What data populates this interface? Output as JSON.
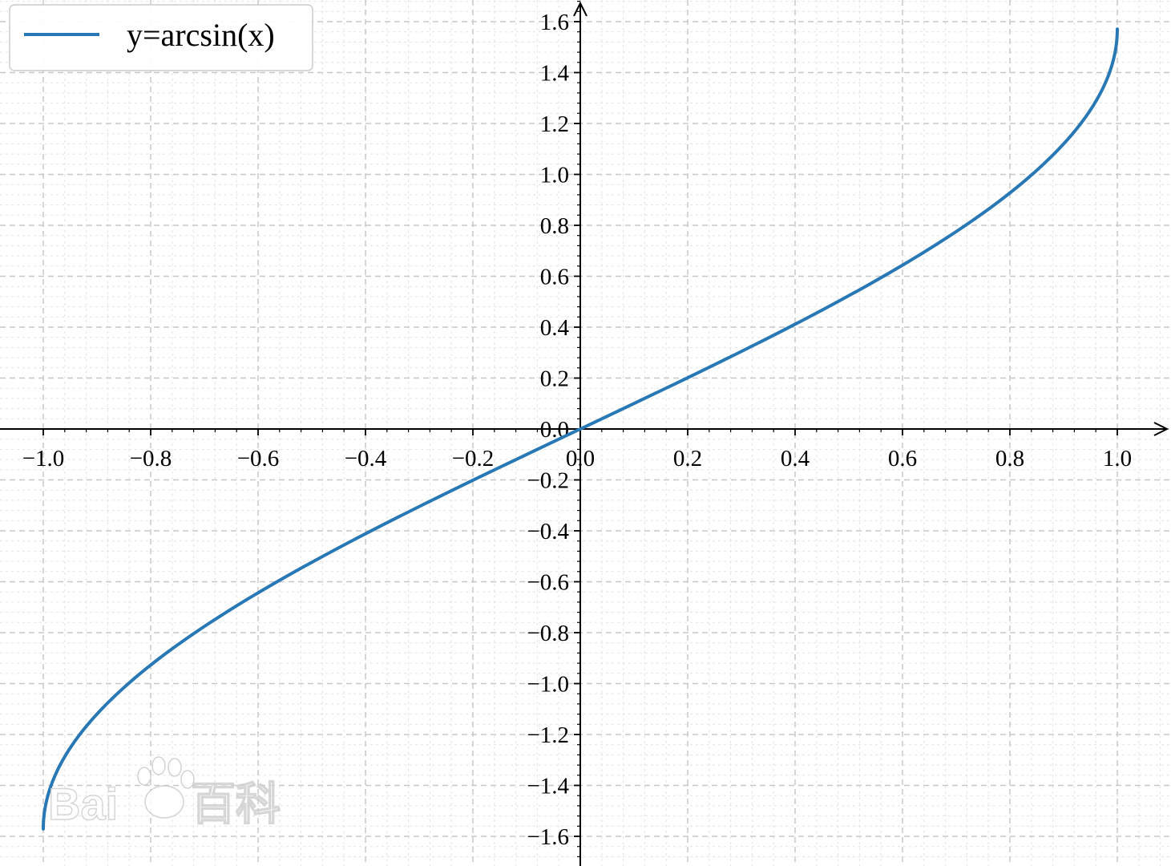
{
  "chart_data": {
    "type": "line",
    "title": "",
    "xlabel": "",
    "ylabel": "",
    "xlim": [
      -1.0,
      1.0
    ],
    "ylim": [
      -1.6,
      1.6
    ],
    "x_ticks": [
      "−1.0",
      "−0.8",
      "−0.6",
      "−0.4",
      "−0.2",
      "0.0",
      "0.2",
      "0.4",
      "0.6",
      "0.8",
      "1.0"
    ],
    "y_ticks": [
      "−1.6",
      "−1.4",
      "−1.2",
      "−1.0",
      "−0.8",
      "−0.6",
      "−0.4",
      "−0.2",
      "0.0",
      "0.2",
      "0.4",
      "0.6",
      "0.8",
      "1.0",
      "1.2",
      "1.4",
      "1.6"
    ],
    "grid": true,
    "minor_grid": true,
    "spines": "centered at origin with arrows",
    "legend": {
      "position": "top-left",
      "entries": [
        "y=arcsin(x)"
      ]
    },
    "series": [
      {
        "name": "y=arcsin(x)",
        "color": "#2878b5",
        "x": [
          -1.0,
          -0.99,
          -0.95,
          -0.9,
          -0.8,
          -0.7,
          -0.6,
          -0.5,
          -0.4,
          -0.3,
          -0.2,
          -0.1,
          0.0,
          0.1,
          0.2,
          0.3,
          0.4,
          0.5,
          0.6,
          0.7,
          0.8,
          0.9,
          0.95,
          0.99,
          1.0
        ],
        "y": [
          -1.571,
          -1.429,
          -1.253,
          -1.12,
          -0.927,
          -0.775,
          -0.644,
          -0.524,
          -0.412,
          -0.305,
          -0.201,
          -0.1,
          0.0,
          0.1,
          0.201,
          0.305,
          0.412,
          0.524,
          0.644,
          0.775,
          0.927,
          1.12,
          1.253,
          1.429,
          1.571
        ]
      }
    ]
  },
  "watermark": {
    "text": "Bai百科",
    "icon": "paw-icon"
  }
}
